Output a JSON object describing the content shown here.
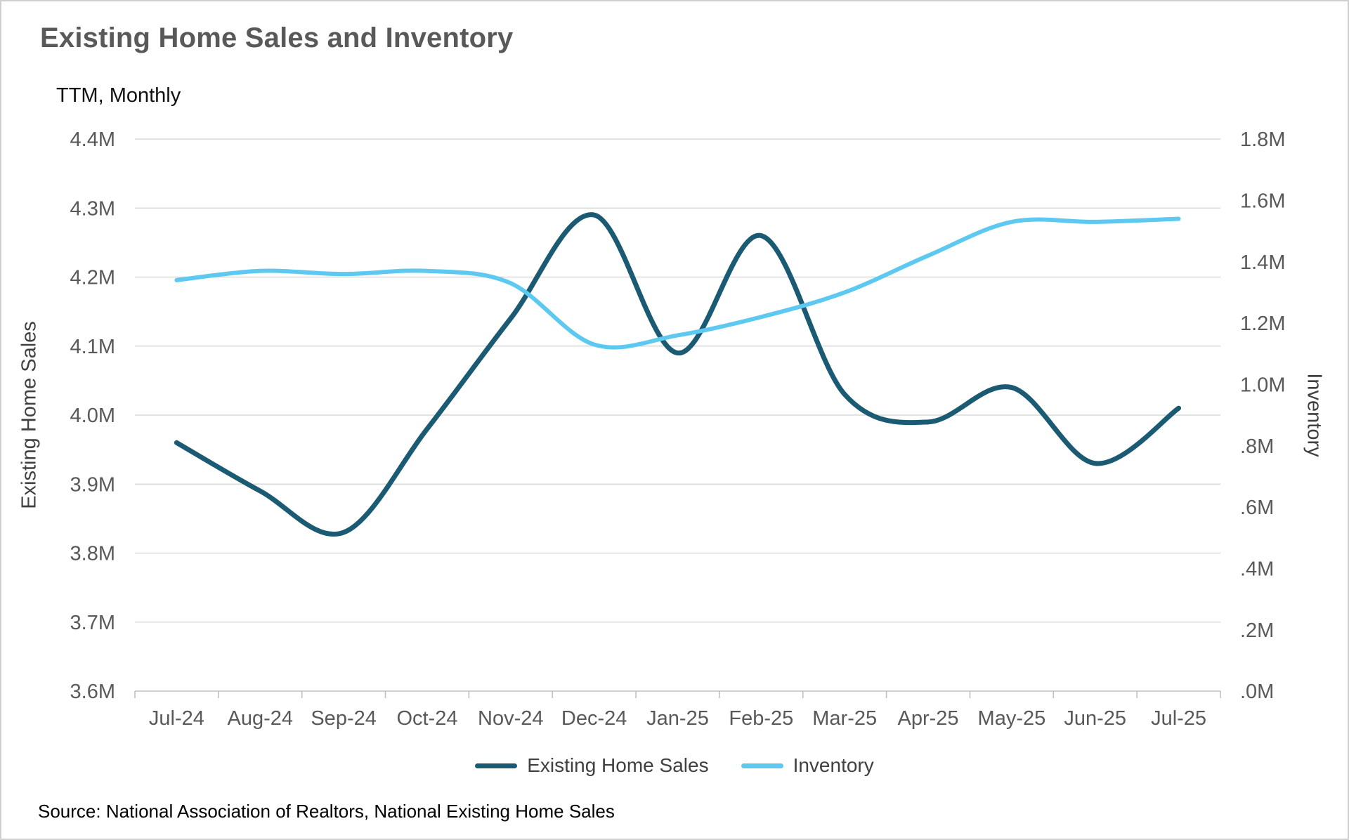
{
  "title": "Existing Home Sales and Inventory",
  "subtitle": "TTM, Monthly",
  "source": "Source: National Association of Realtors, National Existing Home Sales",
  "colors": {
    "sales_line": "#1b5a73",
    "inventory_line": "#5ec9f0",
    "gridline": "#d9d9d9",
    "axis_line": "#bfbfbf",
    "tick_text": "#595959"
  },
  "chart_data": {
    "type": "line",
    "title": "Existing Home Sales and Inventory",
    "subtitle": "TTM, Monthly",
    "grid": true,
    "legend_position": "bottom",
    "categories": [
      "Jul-24",
      "Aug-24",
      "Sep-24",
      "Oct-24",
      "Nov-24",
      "Dec-24",
      "Jan-25",
      "Feb-25",
      "Mar-25",
      "Apr-25",
      "May-25",
      "Jun-25",
      "Jul-25"
    ],
    "series": [
      {
        "name": "Existing Home Sales",
        "axis": "left",
        "color": "#1b5a73",
        "values": [
          3.96,
          3.89,
          3.83,
          3.98,
          4.14,
          4.29,
          4.09,
          4.26,
          4.03,
          3.99,
          4.04,
          3.93,
          4.01
        ]
      },
      {
        "name": "Inventory",
        "axis": "right",
        "color": "#5ec9f0",
        "values": [
          1.34,
          1.37,
          1.36,
          1.37,
          1.33,
          1.13,
          1.16,
          1.22,
          1.3,
          1.42,
          1.53,
          1.53,
          1.54
        ]
      }
    ],
    "left_axis": {
      "label": "Existing Home Sales",
      "min": 3.6,
      "max": 4.4,
      "step": 0.1,
      "tick_labels": [
        "4.4M",
        "4.3M",
        "4.2M",
        "4.1M",
        "4.0M",
        "3.9M",
        "3.8M",
        "3.7M",
        "3.6M"
      ]
    },
    "right_axis": {
      "label": "Inventory",
      "min": 0.0,
      "max": 1.8,
      "step": 0.2,
      "tick_labels": [
        "1.8M",
        "1.6M",
        "1.4M",
        "1.2M",
        "1.0M",
        ".8M",
        ".6M",
        ".4M",
        ".2M",
        ".0M"
      ]
    },
    "legend": [
      {
        "label": "Existing Home Sales"
      },
      {
        "label": "Inventory"
      }
    ]
  }
}
